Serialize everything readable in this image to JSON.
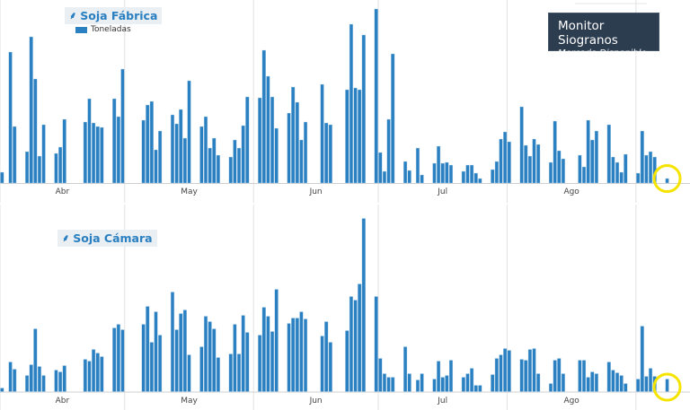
{
  "branding": {
    "title": "Monitor Siogranos",
    "subtitle": "Mercado Disponible"
  },
  "highlight_color": "#f5e400",
  "bar_color": "#2a80c0",
  "chart_data": [
    {
      "type": "bar",
      "title": "Soja Fábrica",
      "title_icon": "wheat-icon",
      "legend": [
        "Toneladas"
      ],
      "legend_placement": "top-left",
      "x_type": "date",
      "xlim": [
        "2025-04-01",
        "2025-09-14"
      ],
      "x_tick_labels": [
        "Abr",
        "May",
        "Jun",
        "Jul",
        "Ago"
      ],
      "ylim": [
        0,
        200
      ],
      "y_axis_shown": false,
      "grid": "vertical month lines",
      "highlighted_point": "2025-09-08",
      "series": [
        {
          "name": "Toneladas",
          "values": [
            12,
            146,
            63,
            35,
            163,
            116,
            30,
            65,
            33,
            40,
            71,
            68,
            94,
            67,
            63,
            62,
            94,
            74,
            127,
            70,
            87,
            91,
            37,
            58,
            76,
            66,
            82,
            50,
            114,
            63,
            74,
            39,
            50,
            31,
            29,
            48,
            39,
            64,
            96,
            95,
            148,
            119,
            96,
            61,
            78,
            107,
            90,
            48,
            68,
            110,
            67,
            65,
            104,
            177,
            106,
            104,
            165,
            194,
            34,
            13,
            71,
            144,
            24,
            14,
            39,
            9,
            22,
            41,
            22,
            23,
            20,
            13,
            20,
            20,
            11,
            5,
            15,
            24,
            49,
            57,
            46,
            85,
            42,
            30,
            49,
            43,
            23,
            69,
            36,
            27,
            31,
            18,
            70,
            48,
            58,
            65,
            29,
            23,
            12,
            32,
            11,
            58,
            31,
            35,
            29,
            5
          ]
        }
      ]
    },
    {
      "type": "bar",
      "title": "Soja Cámara",
      "title_icon": "wheat-icon",
      "x_type": "date",
      "xlim": [
        "2025-04-01",
        "2025-09-14"
      ],
      "x_tick_labels": [
        "Abr",
        "May",
        "Jun",
        "Jul",
        "Ago"
      ],
      "ylim": [
        0,
        200
      ],
      "y_axis_shown": false,
      "grid": "vertical month lines",
      "highlighted_point": "2025-09-08",
      "series": [
        {
          "values": [
            4,
            33,
            25,
            18,
            30,
            70,
            28,
            18,
            24,
            22,
            29,
            36,
            34,
            47,
            43,
            39,
            71,
            75,
            69,
            75,
            95,
            55,
            89,
            63,
            111,
            69,
            87,
            91,
            41,
            50,
            84,
            78,
            70,
            38,
            42,
            75,
            42,
            85,
            66,
            63,
            94,
            84,
            67,
            114,
            76,
            82,
            82,
            89,
            81,
            62,
            78,
            55,
            68,
            106,
            102,
            120,
            193,
            106,
            37,
            20,
            16,
            16,
            50,
            20,
            13,
            20,
            14,
            34,
            16,
            18,
            35,
            16,
            20,
            26,
            7,
            7,
            19,
            37,
            41,
            48,
            46,
            36,
            35,
            47,
            48,
            20,
            9,
            35,
            37,
            20,
            35,
            35,
            16,
            22,
            20,
            33,
            24,
            21,
            18,
            9,
            14,
            73,
            17,
            26,
            17,
            14
          ]
        }
      ]
    }
  ],
  "dates": [
    "2025-04-01",
    "2025-04-03",
    "2025-04-04",
    "2025-04-07",
    "2025-04-08",
    "2025-04-09",
    "2025-04-10",
    "2025-04-11",
    "2025-04-14",
    "2025-04-15",
    "2025-04-16",
    "2025-04-21",
    "2025-04-22",
    "2025-04-23",
    "2025-04-24",
    "2025-04-25",
    "2025-04-28",
    "2025-04-29",
    "2025-04-30",
    "2025-05-05",
    "2025-05-06",
    "2025-05-07",
    "2025-05-08",
    "2025-05-09",
    "2025-05-12",
    "2025-05-13",
    "2025-05-14",
    "2025-05-15",
    "2025-05-16",
    "2025-05-19",
    "2025-05-20",
    "2025-05-21",
    "2025-05-22",
    "2025-05-23",
    "2025-05-26",
    "2025-05-27",
    "2025-05-28",
    "2025-05-29",
    "2025-05-30",
    "2025-06-02",
    "2025-06-03",
    "2025-06-04",
    "2025-06-05",
    "2025-06-06",
    "2025-06-09",
    "2025-06-10",
    "2025-06-11",
    "2025-06-12",
    "2025-06-13",
    "2025-06-17",
    "2025-06-18",
    "2025-06-19",
    "2025-06-23",
    "2025-06-24",
    "2025-06-25",
    "2025-06-26",
    "2025-06-27",
    "2025-06-30",
    "2025-07-01",
    "2025-07-02",
    "2025-07-03",
    "2025-07-04",
    "2025-07-07",
    "2025-07-08",
    "2025-07-10",
    "2025-07-11",
    "2025-07-14",
    "2025-07-15",
    "2025-07-16",
    "2025-07-17",
    "2025-07-18",
    "2025-07-21",
    "2025-07-22",
    "2025-07-23",
    "2025-07-24",
    "2025-07-25",
    "2025-07-28",
    "2025-07-29",
    "2025-07-30",
    "2025-07-31",
    "2025-08-01",
    "2025-08-04",
    "2025-08-05",
    "2025-08-06",
    "2025-08-07",
    "2025-08-08",
    "2025-08-11",
    "2025-08-12",
    "2025-08-13",
    "2025-08-14",
    "2025-08-18",
    "2025-08-19",
    "2025-08-20",
    "2025-08-21",
    "2025-08-22",
    "2025-08-25",
    "2025-08-26",
    "2025-08-27",
    "2025-08-28",
    "2025-08-29",
    "2025-09-01",
    "2025-09-02",
    "2025-09-03",
    "2025-09-04",
    "2025-09-05",
    "2025-09-08"
  ]
}
